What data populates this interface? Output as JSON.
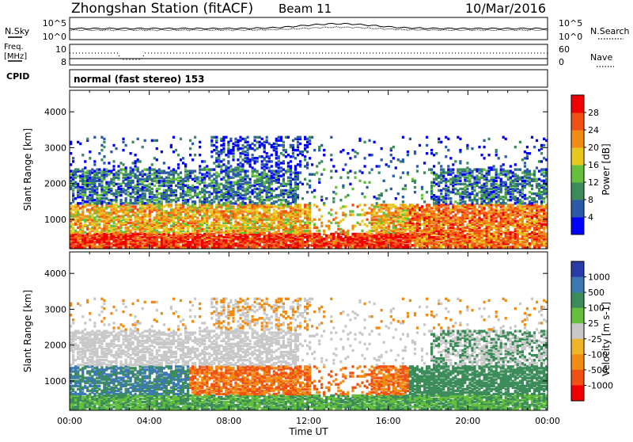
{
  "header": {
    "station": "Zhongshan Station (fitACF)",
    "beam": "Beam 11",
    "date": "10/Mar/2016"
  },
  "noise_panel": {
    "left_label": "N.Sky",
    "left_ticks": [
      "10^5",
      "10^0"
    ],
    "right_label": "N.Search",
    "right_ticks": [
      "10^5",
      "10^0"
    ]
  },
  "freq_panel": {
    "left_label_1": "Freq.",
    "left_label_2": "[MHz]",
    "left_ticks": [
      "10",
      "8"
    ],
    "right_label": "Nave",
    "right_ticks": [
      "60",
      "0"
    ]
  },
  "cpid": {
    "label": "CPID",
    "value": "normal (fast stereo) 153"
  },
  "x_axis": {
    "label": "Time UT",
    "ticks": [
      "00:00",
      "04:00",
      "08:00",
      "12:00",
      "16:00",
      "20:00",
      "00:00"
    ]
  },
  "colors": {
    "power_scale": [
      "#0000ff",
      "#2a5aa8",
      "#3c8c5a",
      "#64c03c",
      "#e6c81e",
      "#f08c14",
      "#f05014",
      "#f00000"
    ],
    "velocity_scale": [
      "#2a3ca8",
      "#3c78b4",
      "#3c8c5a",
      "#64c03c",
      "#c8c8c8",
      "#f0b428",
      "#f08c14",
      "#f05014",
      "#f00000"
    ]
  },
  "chart_data": [
    {
      "type": "heatmap",
      "name_hint": "power",
      "ylabel": "Slant Range [km]",
      "yticks": [
        "1000",
        "2000",
        "3000",
        "4000"
      ],
      "ylim": [
        180,
        4600
      ],
      "xlim_hours": [
        0,
        24
      ],
      "colorbar_label": "Power [dB]",
      "colorbar_ticks": [
        "4",
        "8",
        "12",
        "16",
        "20",
        "24",
        "28"
      ],
      "colorbar_range": [
        0,
        32
      ]
    },
    {
      "type": "heatmap",
      "name_hint": "velocity",
      "ylabel": "Slant Range [km]",
      "yticks": [
        "1000",
        "2000",
        "3000",
        "4000"
      ],
      "ylim": [
        180,
        4600
      ],
      "xlim_hours": [
        0,
        24
      ],
      "colorbar_label": "Velocity [m s-1]",
      "colorbar_ticks": [
        "1000",
        "500",
        "100",
        "25",
        "-25",
        "-100",
        "-500",
        "-1000"
      ]
    }
  ]
}
